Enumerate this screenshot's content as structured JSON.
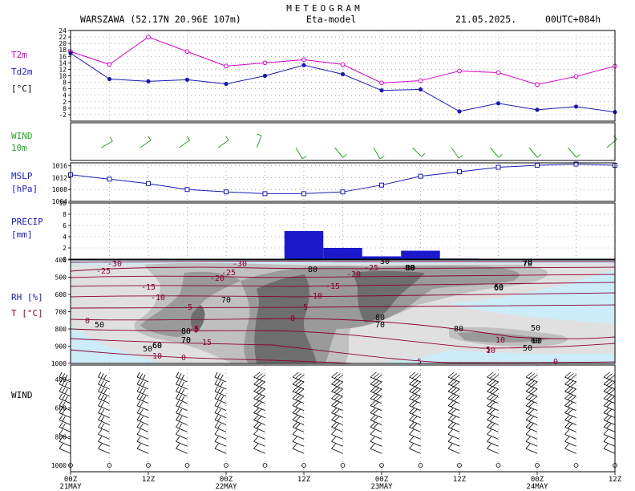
{
  "header": {
    "title": "METEOGRAM",
    "station": "WARSZAWA (52.17N  20.96E   107m)",
    "model": "Eta-model",
    "date": "21.05.2025.",
    "run": "00UTC+084h"
  },
  "colors": {
    "t2m": "#d400c8",
    "td2m": "#1a1ab0",
    "wind10m": "#2aa02a",
    "mslp": "#1a1ab0",
    "precip": "#1a1acc",
    "temp_contour": "#8b0033",
    "rh_light": "#ccecf7",
    "rh_1": "#e0e0e0",
    "rh_2": "#c0c0c0",
    "rh_3": "#9a9a9a",
    "rh_4": "#6e6e6e"
  },
  "time_axis": {
    "ticks": [
      "00Z",
      "12Z",
      "00Z",
      "12Z",
      "00Z",
      "12Z",
      "00Z",
      "12Z"
    ],
    "days": [
      "21MAY",
      "22MAY",
      "23MAY",
      "24MAY"
    ]
  },
  "panels": {
    "temp": {
      "label1": "T2m",
      "label2": "Td2m",
      "label3": "[°C]"
    },
    "wind10": {
      "label1": "WIND",
      "label2": "10m"
    },
    "mslp": {
      "label1": "MSLP",
      "label2": "[hPa]"
    },
    "precip": {
      "label1": "PRECIP",
      "label2": "[mm]"
    },
    "rh": {
      "label1": "RH [%]",
      "label2": "T [°C]"
    },
    "wind": {
      "label1": "WIND"
    }
  },
  "chart_data": [
    {
      "type": "line",
      "name": "temperature",
      "x_hours": [
        0,
        6,
        12,
        18,
        24,
        30,
        36,
        42,
        48,
        54,
        60,
        66,
        72,
        78,
        84
      ],
      "series": [
        {
          "name": "T2m",
          "values": [
            17.5,
            13.5,
            22,
            17.5,
            13,
            14,
            15,
            13.5,
            7.8,
            8.5,
            11.5,
            11,
            7.3,
            9.8,
            13
          ]
        },
        {
          "name": "Td2m",
          "values": [
            17,
            9,
            8.3,
            8.8,
            7.5,
            10,
            13.3,
            10.5,
            5.5,
            5.8,
            -1,
            1.5,
            -0.5,
            0.5,
            -1.2
          ]
        }
      ],
      "ylim": [
        -4,
        24
      ],
      "yticks": [
        -2,
        0,
        2,
        4,
        6,
        8,
        10,
        12,
        14,
        16,
        18,
        20,
        22,
        24
      ],
      "grid": true
    },
    {
      "type": "barbs",
      "name": "wind10m",
      "x_hours": [
        6,
        12,
        18,
        24,
        30,
        36,
        42,
        48,
        54,
        60,
        66,
        72,
        78,
        84
      ],
      "direction_deg": [
        240,
        235,
        235,
        235,
        200,
        330,
        320,
        330,
        315,
        325,
        320,
        320,
        320,
        230
      ],
      "speed_kt": [
        10,
        10,
        10,
        10,
        10,
        10,
        10,
        10,
        10,
        10,
        10,
        10,
        10,
        10
      ]
    },
    {
      "type": "line",
      "name": "MSLP",
      "x_hours": [
        0,
        6,
        12,
        18,
        24,
        30,
        36,
        42,
        48,
        54,
        60,
        66,
        72,
        78,
        84
      ],
      "series": [
        {
          "name": "MSLP",
          "values": [
            1013,
            1011.5,
            1010,
            1008,
            1007.2,
            1006.6,
            1006.6,
            1007.2,
            1009.5,
            1012.5,
            1014,
            1015.5,
            1016.2,
            1016.6,
            1016.2
          ]
        }
      ],
      "ylim": [
        1004,
        1017
      ],
      "yticks": [
        1004,
        1008,
        1012,
        1016
      ],
      "grid": true
    },
    {
      "type": "bar",
      "name": "precip",
      "x_hours": [
        [
          33,
          39
        ],
        [
          39,
          45
        ],
        [
          45,
          51
        ],
        [
          51,
          57
        ],
        [
          57,
          63
        ]
      ],
      "values": [
        5.0,
        2.0,
        0.5,
        1.5,
        0.1
      ],
      "ylim": [
        0,
        10
      ],
      "yticks": [
        0,
        2,
        4,
        6,
        8,
        10
      ],
      "grid": true
    },
    {
      "type": "heatmap",
      "name": "RH and temperature cross-section",
      "y_levels_hpa": [
        400,
        500,
        600,
        700,
        800,
        900,
        1000
      ],
      "rh_contour_labels": [
        "80",
        "70",
        "70",
        "80",
        "80",
        "60",
        "70",
        "60",
        "50",
        "60",
        "70",
        "80",
        "50",
        "80",
        "70",
        "60",
        "50",
        "60",
        "80",
        "60",
        "70",
        "50",
        "30"
      ],
      "temp_contour_labels": [
        "-30",
        "-25",
        "-30",
        "-25",
        "-20",
        "-25",
        "-20",
        "-15",
        "-15",
        "-10",
        "-10",
        "-5",
        "-5",
        "-5",
        "0",
        "-5",
        "0",
        "5",
        "10",
        "15",
        "0",
        "5",
        "0",
        "10",
        "10"
      ],
      "temp_contour_levels": [
        -30,
        -25,
        -20,
        -15,
        -10,
        -5,
        0,
        5,
        10,
        15
      ]
    },
    {
      "type": "barbs",
      "name": "wind_profile",
      "y_levels_hpa": [
        400,
        500,
        600,
        700,
        800,
        900,
        1000
      ],
      "yticks": [
        400,
        600,
        800,
        1000
      ]
    }
  ]
}
